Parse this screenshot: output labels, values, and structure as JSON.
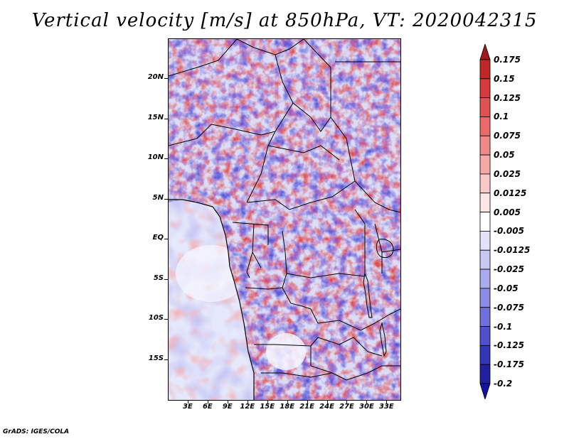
{
  "title": "Vertical velocity [m/s] at 850hPa, VT: 2020042315",
  "credit": "GrADS: IGES/COLA",
  "map": {
    "type": "filled-contour-map",
    "variable": "Vertical velocity",
    "units": "m/s",
    "level": "850hPa",
    "valid_time": "2020042315",
    "lat_range": [
      -20,
      25
    ],
    "lon_range": [
      0,
      35
    ],
    "lat_labels": [
      {
        "value": 20,
        "text": "20N"
      },
      {
        "value": 15,
        "text": "15N"
      },
      {
        "value": 10,
        "text": "10N"
      },
      {
        "value": 5,
        "text": "5N"
      },
      {
        "value": 0,
        "text": "EQ"
      },
      {
        "value": -5,
        "text": "5S"
      },
      {
        "value": -10,
        "text": "10S"
      },
      {
        "value": -15,
        "text": "15S"
      }
    ],
    "lon_labels": [
      {
        "value": 3,
        "text": "3E"
      },
      {
        "value": 6,
        "text": "6E"
      },
      {
        "value": 9,
        "text": "9E"
      },
      {
        "value": 12,
        "text": "12E"
      },
      {
        "value": 15,
        "text": "15E"
      },
      {
        "value": 18,
        "text": "18E"
      },
      {
        "value": 21,
        "text": "21E"
      },
      {
        "value": 24,
        "text": "24E"
      },
      {
        "value": 27,
        "text": "27E"
      },
      {
        "value": 30,
        "text": "30E"
      },
      {
        "value": 33,
        "text": "33E"
      }
    ]
  },
  "colorbar": {
    "labels": [
      "0.175",
      "0.15",
      "0.125",
      "0.1",
      "0.075",
      "0.05",
      "0.025",
      "0.0125",
      "0.005",
      "-0.005",
      "-0.0125",
      "-0.025",
      "-0.05",
      "-0.075",
      "-0.1",
      "-0.125",
      "-0.175",
      "-0.2"
    ],
    "colors": [
      "#a01818",
      "#c02828",
      "#d63a3a",
      "#e25050",
      "#ea6a6a",
      "#f08888",
      "#f5a8a8",
      "#fac8c8",
      "#fde6e6",
      "#ffffff",
      "#e2e2fa",
      "#c8c8f4",
      "#aaaaee",
      "#8c8ce6",
      "#7070dc",
      "#5050cc",
      "#3434b8",
      "#2020a0",
      "#1414a0"
    ]
  }
}
